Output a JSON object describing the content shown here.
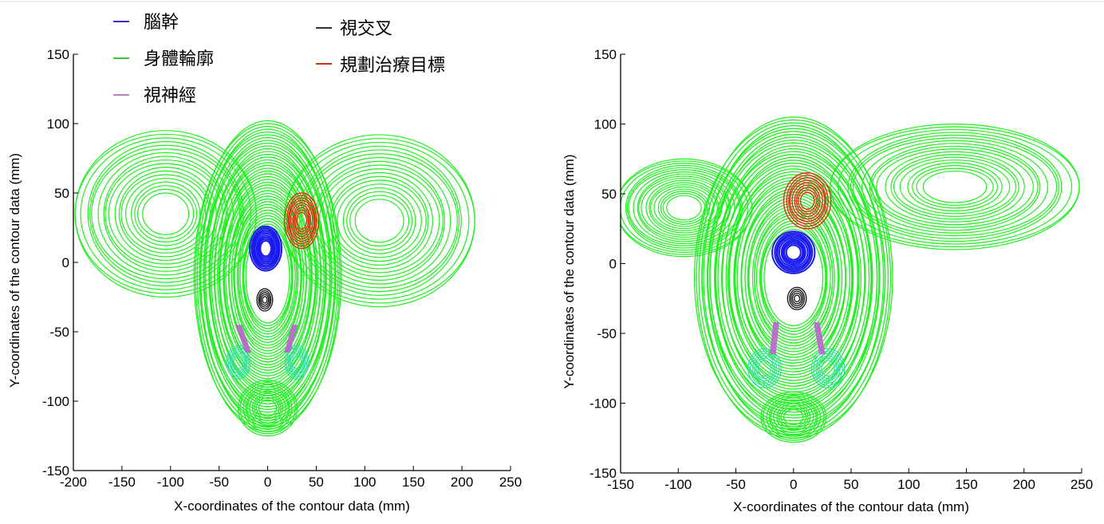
{
  "legend": [
    {
      "label": "腦幹",
      "color": "#3333cc"
    },
    {
      "label": "身體輪廓",
      "color": "#33cc33"
    },
    {
      "label": "視神經",
      "color": "#c080c0"
    },
    {
      "label": "視交叉",
      "color": "#333333"
    },
    {
      "label": "規劃治療目標",
      "color": "#cc3311"
    }
  ],
  "colors": {
    "body": "#22ee22",
    "brainstem": "#1a1aee",
    "optic_nerve": "#bb66cc",
    "chiasm": "#111111",
    "target": "#dd3311",
    "eye": "#33ddaa"
  },
  "chart_data": [
    {
      "type": "scatter",
      "title": "",
      "xlabel": "X-coordinates of the contour data (mm)",
      "ylabel": "Y-coordinates of the contour data (mm)",
      "xlim": [
        -200,
        250
      ],
      "ylim": [
        -150,
        150
      ],
      "xticks": [
        "-200",
        "-150",
        "-100",
        "-50",
        "0",
        "50",
        "100",
        "150",
        "200",
        "250"
      ],
      "yticks": [
        "-150",
        "-100",
        "-50",
        "0",
        "50",
        "100",
        "150"
      ],
      "structures": {
        "body_head": {
          "cx": 0,
          "cy": -10,
          "rx": 75,
          "ry": 112
        },
        "body_shoulder_left": {
          "cx": -105,
          "cy": 35,
          "rx": 95,
          "ry": 60
        },
        "body_shoulder_right": {
          "cx": 115,
          "cy": 30,
          "rx": 100,
          "ry": 62
        },
        "body_chin": {
          "cx": 0,
          "cy": -105,
          "rx": 30,
          "ry": 20
        },
        "brainstem": {
          "cx": -2,
          "cy": 10,
          "rx": 16,
          "ry": 16
        },
        "chiasm": {
          "cx": -3,
          "cy": -27,
          "rx": 8,
          "ry": 8
        },
        "optic_nerve_left": {
          "x1": -20,
          "y1": -65,
          "x2": -30,
          "y2": -45
        },
        "optic_nerve_right": {
          "x1": 20,
          "y1": -65,
          "x2": 28,
          "y2": -45
        },
        "target": {
          "cx": 35,
          "cy": 30,
          "rx": 17,
          "ry": 20
        },
        "eye_left": {
          "cx": -30,
          "cy": -72,
          "rx": 12,
          "ry": 12
        },
        "eye_right": {
          "cx": 30,
          "cy": -72,
          "rx": 12,
          "ry": 12
        }
      }
    },
    {
      "type": "scatter",
      "title": "",
      "xlabel": "X-coordinates of the contour data (mm)",
      "ylabel": "Y-coordinates of the contour data (mm)",
      "xlim": [
        -150,
        250
      ],
      "ylim": [
        -150,
        150
      ],
      "xticks": [
        "-150",
        "-100",
        "-50",
        "0",
        "50",
        "100",
        "150",
        "200",
        "250"
      ],
      "yticks": [
        "-150",
        "-100",
        "-50",
        "0",
        "50",
        "100",
        "150"
      ],
      "structures": {
        "body_head": {
          "cx": 0,
          "cy": -10,
          "rx": 85,
          "ry": 115
        },
        "body_shoulder_left": {
          "cx": -95,
          "cy": 40,
          "rx": 60,
          "ry": 35
        },
        "body_shoulder_right": {
          "cx": 140,
          "cy": 55,
          "rx": 110,
          "ry": 45
        },
        "body_chin": {
          "cx": 0,
          "cy": -110,
          "rx": 28,
          "ry": 18
        },
        "brainstem": {
          "cx": 0,
          "cy": 8,
          "rx": 18,
          "ry": 15
        },
        "chiasm": {
          "cx": 3,
          "cy": -25,
          "rx": 8,
          "ry": 8
        },
        "optic_nerve_left": {
          "x1": -18,
          "y1": -65,
          "x2": -15,
          "y2": -42
        },
        "optic_nerve_right": {
          "x1": 25,
          "y1": -65,
          "x2": 20,
          "y2": -42
        },
        "target": {
          "cx": 12,
          "cy": 45,
          "rx": 20,
          "ry": 20
        },
        "eye_left": {
          "cx": -25,
          "cy": -75,
          "rx": 14,
          "ry": 14
        },
        "eye_right": {
          "cx": 30,
          "cy": -75,
          "rx": 14,
          "ry": 14
        }
      }
    }
  ]
}
